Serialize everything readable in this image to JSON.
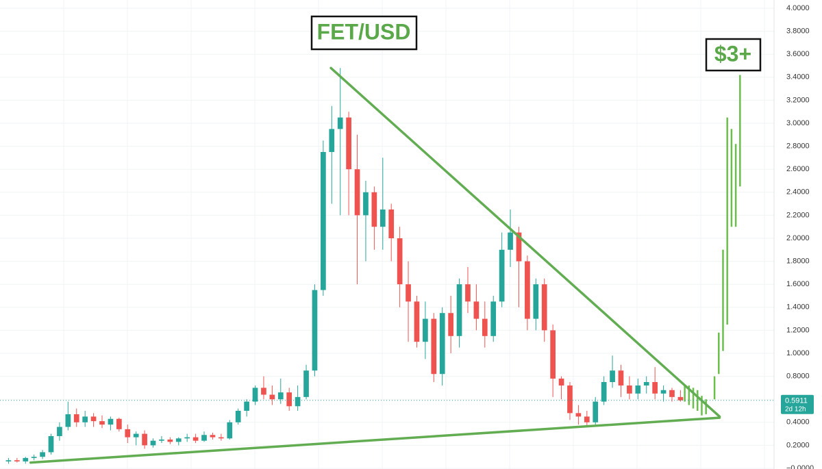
{
  "chart_data": {
    "type": "candlestick",
    "title": "FET/USD",
    "annotation": "$3+",
    "last_price": 0.5911,
    "countdown": "2d 12h",
    "up_color": "#26a69a",
    "down_color": "#ef5350",
    "x": [
      0,
      1,
      2,
      3,
      4,
      5,
      6,
      7,
      8,
      9,
      10,
      11,
      12,
      13,
      14,
      15,
      16,
      17,
      18,
      19,
      20,
      21,
      22,
      23,
      24,
      25,
      26,
      27,
      28,
      29,
      30,
      31,
      32,
      33,
      34,
      35,
      36,
      37,
      38,
      39,
      40,
      41,
      42,
      43,
      44,
      45,
      46,
      47,
      48,
      49,
      50,
      51,
      52,
      53,
      54,
      55,
      56,
      57,
      58,
      59,
      60,
      61,
      62,
      63,
      64,
      65,
      66,
      67,
      68,
      69,
      70,
      71,
      72,
      73,
      74,
      75,
      76,
      77,
      78,
      79
    ],
    "open": [
      0.06,
      0.07,
      0.06,
      0.09,
      0.1,
      0.14,
      0.28,
      0.36,
      0.47,
      0.4,
      0.45,
      0.41,
      0.38,
      0.43,
      0.34,
      0.27,
      0.3,
      0.2,
      0.24,
      0.25,
      0.23,
      0.26,
      0.27,
      0.24,
      0.29,
      0.27,
      0.26,
      0.4,
      0.5,
      0.58,
      0.7,
      0.64,
      0.6,
      0.66,
      0.54,
      0.62,
      0.85,
      1.55,
      2.75,
      2.95,
      3.05,
      2.6,
      2.2,
      2.4,
      2.1,
      2.25,
      2.0,
      1.6,
      1.45,
      1.1,
      1.3,
      0.82,
      1.35,
      1.15,
      1.6,
      1.45,
      1.3,
      1.15,
      1.45,
      1.9,
      2.05,
      1.8,
      1.3,
      1.6,
      1.2,
      0.78,
      0.72,
      0.48,
      0.45,
      0.4,
      0.58,
      0.75,
      0.85,
      0.72,
      0.65,
      0.72,
      0.75,
      0.65,
      0.68,
      0.62
    ],
    "high": [
      0.09,
      0.09,
      0.1,
      0.12,
      0.16,
      0.3,
      0.4,
      0.58,
      0.52,
      0.5,
      0.48,
      0.46,
      0.45,
      0.44,
      0.38,
      0.32,
      0.33,
      0.26,
      0.28,
      0.27,
      0.27,
      0.3,
      0.3,
      0.32,
      0.31,
      0.3,
      0.42,
      0.52,
      0.6,
      0.72,
      0.8,
      0.72,
      0.78,
      0.7,
      0.72,
      0.9,
      1.6,
      2.85,
      3.15,
      3.48,
      3.1,
      2.9,
      2.5,
      2.45,
      2.7,
      2.3,
      2.1,
      1.8,
      1.5,
      1.45,
      1.35,
      1.4,
      1.5,
      1.65,
      1.75,
      1.6,
      1.45,
      1.5,
      2.05,
      2.25,
      2.1,
      1.85,
      1.65,
      1.65,
      1.25,
      0.8,
      0.75,
      0.55,
      0.5,
      0.62,
      0.8,
      0.98,
      0.9,
      0.8,
      0.78,
      0.8,
      0.88,
      0.72,
      0.7,
      0.68
    ],
    "low": [
      0.04,
      0.05,
      0.04,
      0.07,
      0.08,
      0.12,
      0.24,
      0.33,
      0.36,
      0.36,
      0.36,
      0.35,
      0.33,
      0.32,
      0.22,
      0.2,
      0.17,
      0.18,
      0.22,
      0.21,
      0.2,
      0.23,
      0.22,
      0.23,
      0.25,
      0.24,
      0.25,
      0.38,
      0.45,
      0.55,
      0.6,
      0.55,
      0.56,
      0.5,
      0.5,
      0.6,
      0.8,
      1.5,
      2.3,
      2.2,
      2.2,
      1.6,
      1.8,
      1.9,
      1.9,
      1.8,
      1.4,
      1.1,
      1.05,
      0.95,
      0.75,
      0.72,
      1.0,
      1.05,
      1.35,
      1.2,
      1.05,
      1.1,
      1.4,
      1.75,
      1.4,
      1.2,
      1.2,
      1.1,
      0.62,
      0.6,
      0.42,
      0.38,
      0.36,
      0.38,
      0.55,
      0.7,
      0.62,
      0.6,
      0.6,
      0.65,
      0.6,
      0.58,
      0.58,
      0.58
    ],
    "close": [
      0.07,
      0.06,
      0.09,
      0.1,
      0.14,
      0.28,
      0.36,
      0.47,
      0.4,
      0.45,
      0.41,
      0.38,
      0.43,
      0.34,
      0.27,
      0.3,
      0.2,
      0.24,
      0.25,
      0.23,
      0.26,
      0.27,
      0.24,
      0.29,
      0.27,
      0.26,
      0.4,
      0.5,
      0.58,
      0.7,
      0.64,
      0.6,
      0.66,
      0.54,
      0.62,
      0.85,
      1.55,
      2.75,
      2.95,
      3.05,
      2.6,
      2.2,
      2.4,
      2.1,
      2.25,
      2.0,
      1.6,
      1.45,
      1.1,
      1.3,
      0.82,
      1.35,
      1.15,
      1.6,
      1.45,
      1.3,
      1.15,
      1.45,
      1.9,
      2.05,
      1.8,
      1.3,
      1.6,
      1.2,
      0.78,
      0.72,
      0.48,
      0.45,
      0.4,
      0.58,
      0.75,
      0.85,
      0.72,
      0.65,
      0.72,
      0.75,
      0.65,
      0.68,
      0.62,
      0.5911
    ],
    "projection": {
      "color": "#6abf4b",
      "x": [
        79.5,
        80,
        80.5,
        81,
        81.5,
        82,
        83,
        83.5,
        84,
        84.5,
        85,
        85.5,
        86
      ],
      "low": [
        0.58,
        0.55,
        0.52,
        0.5,
        0.46,
        0.47,
        0.6,
        0.82,
        1.02,
        1.25,
        2.1,
        2.1,
        2.45
      ],
      "high": [
        0.72,
        0.72,
        0.7,
        0.68,
        0.63,
        0.6,
        0.8,
        1.18,
        1.9,
        3.05,
        2.95,
        2.82,
        3.42
      ]
    },
    "trendlines": [
      {
        "color": "#62ad52",
        "x": [
          37.9,
          83.6
        ],
        "y": [
          3.48,
          0.45
        ]
      },
      {
        "color": "#62ad52",
        "x": [
          2.6,
          83.6
        ],
        "y": [
          0.05,
          0.44
        ]
      }
    ],
    "xlim": [
      -1,
      90
    ],
    "ylim": [
      0,
      4
    ],
    "yticks": [
      {
        "value": 0,
        "label": "−0.0000"
      },
      {
        "value": 0.2,
        "label": "0.2000"
      },
      {
        "value": 0.4,
        "label": "0.4000"
      },
      {
        "value": 0.6,
        "label": "0.6000"
      },
      {
        "value": 0.8,
        "label": "0.8000"
      },
      {
        "value": 1,
        "label": "1.0000"
      },
      {
        "value": 1.2,
        "label": "1.2000"
      },
      {
        "value": 1.4,
        "label": "1.4000"
      },
      {
        "value": 1.6,
        "label": "1.6000"
      },
      {
        "value": 1.8,
        "label": "1.8000"
      },
      {
        "value": 2,
        "label": "2.0000"
      },
      {
        "value": 2.2,
        "label": "2.2000"
      },
      {
        "value": 2.4,
        "label": "2.4000"
      },
      {
        "value": 2.6,
        "label": "2.6000"
      },
      {
        "value": 2.8,
        "label": "2.8000"
      },
      {
        "value": 3,
        "label": "3.0000"
      },
      {
        "value": 3.2,
        "label": "3.2000"
      },
      {
        "value": 3.4,
        "label": "3.4000"
      },
      {
        "value": 3.6,
        "label": "3.6000"
      },
      {
        "value": 3.8,
        "label": "3.8000"
      },
      {
        "value": 4,
        "label": "4.0000"
      }
    ],
    "grid": true
  }
}
